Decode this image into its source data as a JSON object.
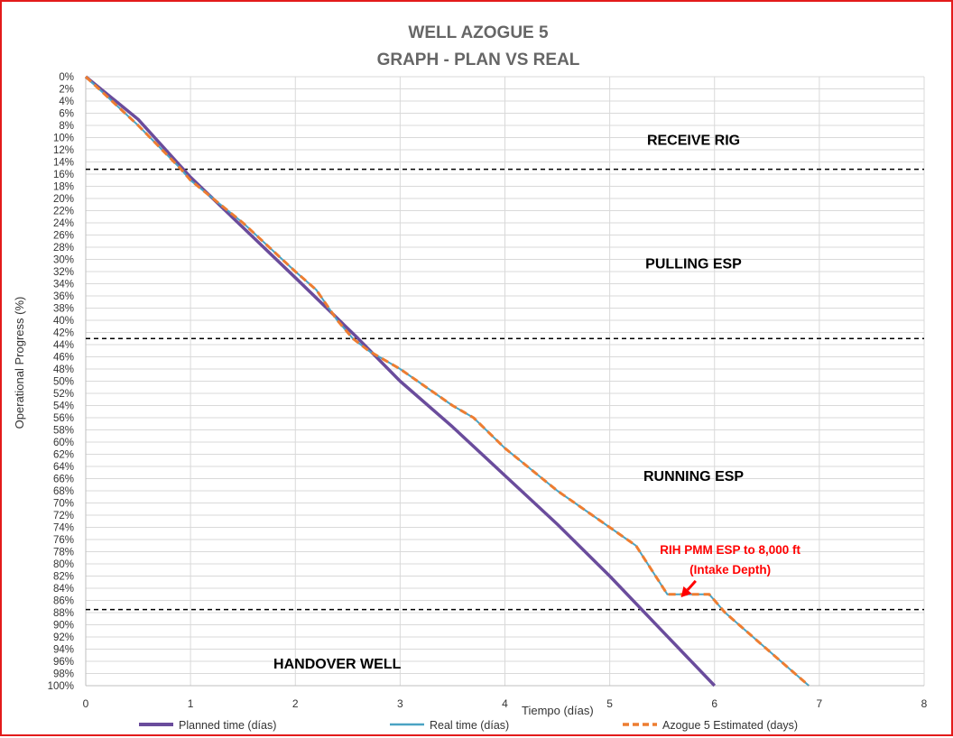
{
  "chart_data": {
    "type": "line",
    "title_line1": "WELL AZOGUE 5",
    "title_line2": "GRAPH  - PLAN VS REAL",
    "xlabel": "Tiempo (días)",
    "ylabel": "Operational Progress (%)",
    "xlim": [
      0,
      8
    ],
    "ylim": [
      0,
      100
    ],
    "y_inverted": true,
    "x_ticks": [
      "0",
      "1",
      "2",
      "3",
      "4",
      "5",
      "6",
      "7",
      "8"
    ],
    "y_ticks": [
      "0%",
      "2%",
      "4%",
      "6%",
      "8%",
      "10%",
      "12%",
      "14%",
      "16%",
      "18%",
      "20%",
      "22%",
      "24%",
      "26%",
      "28%",
      "30%",
      "32%",
      "34%",
      "36%",
      "38%",
      "40%",
      "42%",
      "44%",
      "46%",
      "48%",
      "50%",
      "52%",
      "54%",
      "56%",
      "58%",
      "60%",
      "62%",
      "64%",
      "66%",
      "68%",
      "70%",
      "72%",
      "74%",
      "76%",
      "78%",
      "80%",
      "82%",
      "84%",
      "86%",
      "88%",
      "90%",
      "92%",
      "94%",
      "96%",
      "98%",
      "100%"
    ],
    "grid": true,
    "legend_position": "bottom",
    "series": [
      {
        "name": "Planned time (días)",
        "color": "#6a4c9c",
        "style": "solid",
        "points": [
          [
            0,
            0
          ],
          [
            0.5,
            7
          ],
          [
            1,
            16.5
          ],
          [
            2,
            33
          ],
          [
            2.6,
            43
          ],
          [
            3,
            50
          ],
          [
            3.5,
            57.5
          ],
          [
            4,
            65.5
          ],
          [
            4.5,
            73.5
          ],
          [
            5,
            82
          ],
          [
            5.5,
            91
          ],
          [
            6,
            100
          ]
        ]
      },
      {
        "name": "Real time (días)",
        "color": "#4aa3c3",
        "style": "solid",
        "points": [
          [
            0,
            0
          ],
          [
            0.5,
            8
          ],
          [
            0.9,
            15
          ],
          [
            1,
            17
          ],
          [
            1.5,
            24
          ],
          [
            2,
            32
          ],
          [
            2.2,
            35
          ],
          [
            2.4,
            40
          ],
          [
            2.55,
            43
          ],
          [
            2.7,
            45
          ],
          [
            3,
            48
          ],
          [
            3.5,
            54
          ],
          [
            3.7,
            56
          ],
          [
            4,
            61
          ],
          [
            4.5,
            68
          ],
          [
            5,
            74
          ],
          [
            5.25,
            77
          ],
          [
            5.4,
            81
          ],
          [
            5.55,
            85
          ],
          [
            5.65,
            85
          ],
          [
            5.95,
            85
          ],
          [
            6,
            86
          ],
          [
            6.1,
            88
          ],
          [
            6.5,
            94
          ],
          [
            6.7,
            97
          ],
          [
            6.9,
            100
          ]
        ]
      },
      {
        "name": "Azogue 5 Estimated (days)",
        "color": "#ed7d31",
        "style": "dashed",
        "points": [
          [
            0,
            0
          ],
          [
            0.5,
            8
          ],
          [
            0.9,
            15
          ],
          [
            1,
            17
          ],
          [
            1.5,
            24
          ],
          [
            2,
            32
          ],
          [
            2.2,
            35
          ],
          [
            2.4,
            40
          ],
          [
            2.55,
            43
          ],
          [
            2.7,
            45
          ],
          [
            3,
            48
          ],
          [
            3.5,
            54
          ],
          [
            3.7,
            56
          ],
          [
            4,
            61
          ],
          [
            4.5,
            68
          ],
          [
            5,
            74
          ],
          [
            5.25,
            77
          ],
          [
            5.4,
            81
          ],
          [
            5.55,
            85
          ],
          [
            5.65,
            85
          ],
          [
            5.95,
            85
          ],
          [
            6,
            86
          ],
          [
            6.1,
            88
          ],
          [
            6.5,
            94
          ],
          [
            6.7,
            97
          ],
          [
            6.9,
            100
          ]
        ]
      }
    ],
    "phase_lines": [
      15.2,
      43,
      87.5
    ],
    "phases": [
      {
        "label": "RECEIVE RIG",
        "x": 5.8,
        "y": 10.3
      },
      {
        "label": "PULLING ESP",
        "x": 5.8,
        "y": 30.6
      },
      {
        "label": "RUNNING ESP",
        "x": 5.8,
        "y": 65.5
      },
      {
        "label": "HANDOVER WELL",
        "x": 2.4,
        "y": 96.3
      }
    ],
    "annotation": {
      "line1": "RIH PMM ESP to 8,000 ft",
      "line2": "(Intake Depth)",
      "x": 6.15,
      "y": 77.6,
      "arrow_from": [
        5.82,
        82.8
      ],
      "arrow_to": [
        5.68,
        85.5
      ]
    }
  }
}
